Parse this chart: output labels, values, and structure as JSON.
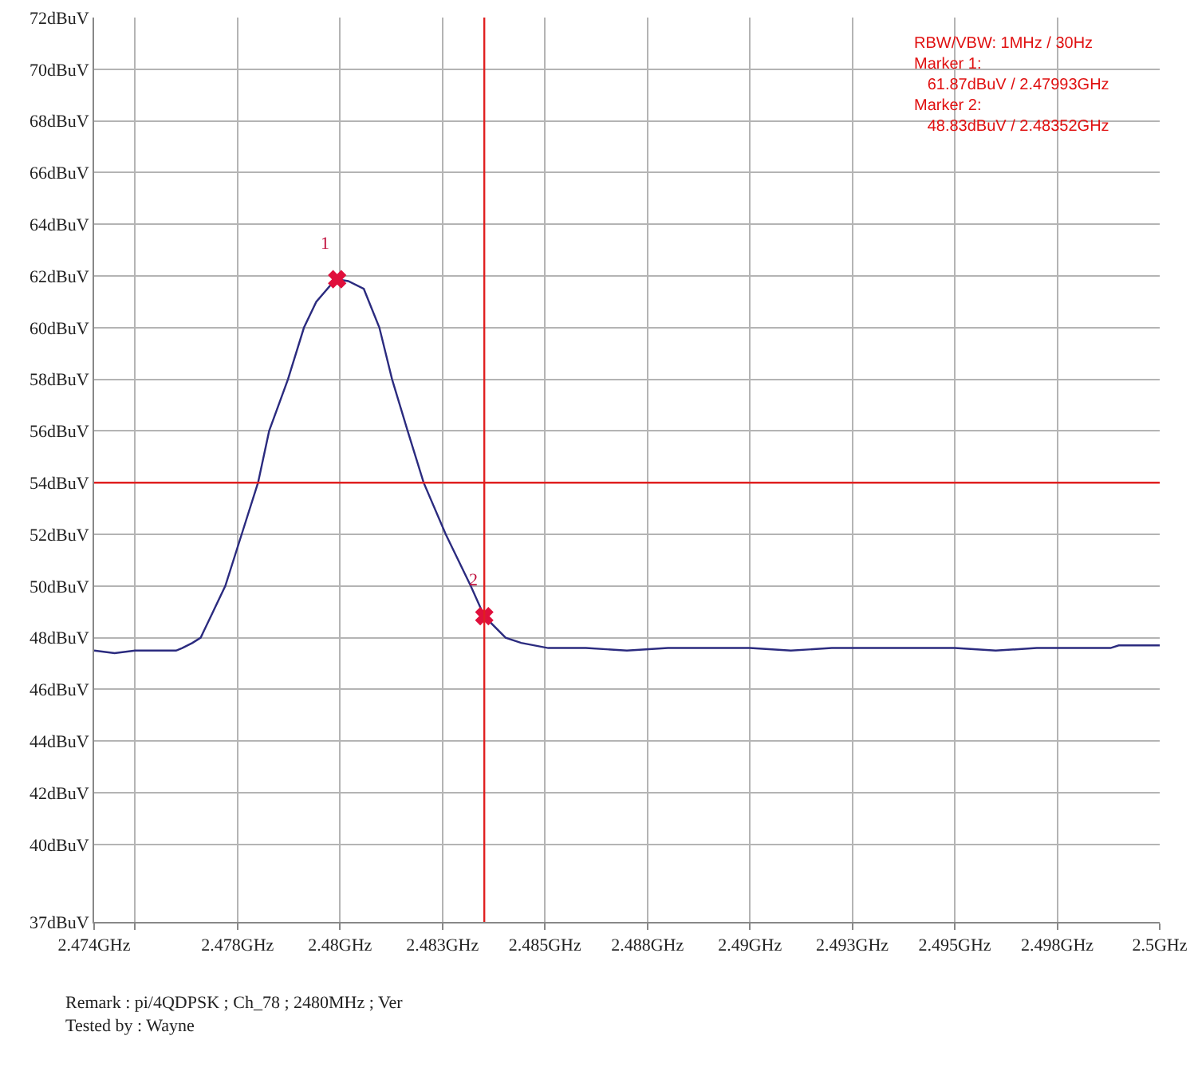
{
  "chart_data": {
    "type": "line",
    "xlim": [
      2.474,
      2.5
    ],
    "xticks": [
      {
        "value": 2.474,
        "label": "2.474GHz"
      },
      {
        "value": 2.475,
        "label": null
      },
      {
        "value": 2.4775,
        "label": "2.478GHz"
      },
      {
        "value": 2.48,
        "label": "2.48GHz"
      },
      {
        "value": 2.4825,
        "label": "2.483GHz"
      },
      {
        "value": 2.485,
        "label": "2.485GHz"
      },
      {
        "value": 2.4875,
        "label": "2.488GHz"
      },
      {
        "value": 2.49,
        "label": "2.49GHz"
      },
      {
        "value": 2.4925,
        "label": "2.493GHz"
      },
      {
        "value": 2.495,
        "label": "2.495GHz"
      },
      {
        "value": 2.4975,
        "label": "2.498GHz"
      },
      {
        "value": 2.5,
        "label": "2.5GHz"
      }
    ],
    "ylim": [
      37,
      72
    ],
    "yticks": [
      {
        "value": 37,
        "label": "37dBuV"
      },
      {
        "value": 40,
        "label": "40dBuV"
      },
      {
        "value": 42,
        "label": "42dBuV"
      },
      {
        "value": 44,
        "label": "44dBuV"
      },
      {
        "value": 46,
        "label": "46dBuV"
      },
      {
        "value": 48,
        "label": "48dBuV"
      },
      {
        "value": 50,
        "label": "50dBuV"
      },
      {
        "value": 52,
        "label": "52dBuV"
      },
      {
        "value": 54,
        "label": "54dBuV"
      },
      {
        "value": 56,
        "label": "56dBuV"
      },
      {
        "value": 58,
        "label": "58dBuV"
      },
      {
        "value": 60,
        "label": "60dBuV"
      },
      {
        "value": 62,
        "label": "62dBuV"
      },
      {
        "value": 64,
        "label": "64dBuV"
      },
      {
        "value": 66,
        "label": "66dBuV"
      },
      {
        "value": 68,
        "label": "68dBuV"
      },
      {
        "value": 70,
        "label": "70dBuV"
      },
      {
        "value": 72,
        "label": "72dBuV"
      }
    ],
    "grid": true,
    "series": [
      {
        "type": "line",
        "color": "#2b2b7f",
        "x": [
          2.474,
          2.4745,
          2.475,
          2.4755,
          2.476,
          2.47615,
          2.4764,
          2.4766,
          2.4769,
          2.4772,
          2.4776,
          2.478,
          2.47827,
          2.47873,
          2.47912,
          2.47942,
          2.4798,
          2.47993,
          2.4802,
          2.48058,
          2.48096,
          2.48127,
          2.48165,
          2.48204,
          2.48258,
          2.48319,
          2.48352,
          2.48404,
          2.48442,
          2.48508,
          2.486,
          2.487,
          2.488,
          2.489,
          2.49,
          2.491,
          2.492,
          2.493,
          2.494,
          2.495,
          2.496,
          2.497,
          2.498,
          2.4988,
          2.499,
          2.5
        ],
        "values": [
          47.5,
          47.4,
          47.5,
          47.5,
          47.5,
          47.6,
          47.8,
          48,
          49,
          50,
          52,
          54,
          56,
          58,
          60,
          61,
          61.7,
          61.87,
          61.8,
          61.5,
          60,
          58,
          56,
          54,
          52,
          50,
          48.83,
          48,
          47.8,
          47.6,
          47.6,
          47.5,
          47.6,
          47.6,
          47.6,
          47.5,
          47.6,
          47.6,
          47.6,
          47.6,
          47.5,
          47.6,
          47.6,
          47.6,
          47.7,
          47.7
        ]
      },
      {
        "type": "scatter",
        "color": "#e0103c",
        "marker": "cross",
        "x": [
          2.47993,
          2.48352
        ],
        "values": [
          61.87,
          48.83
        ]
      }
    ],
    "ref_lines": [
      {
        "axis": "y",
        "value": 54,
        "color": "#e02020"
      },
      {
        "axis": "x",
        "value": 2.48352,
        "color": "#e02020"
      }
    ],
    "annotations": [
      {
        "text": "1",
        "x": 2.47993,
        "y": 61.87
      },
      {
        "text": "2",
        "x": 2.48352,
        "y": 48.83
      },
      "RBW/VBW: 1MHz / 30Hz\nMarker 1:\n   61.87dBuV / 2.47993GHz\nMarker 2:\n   48.83dBuV / 2.48352GHz",
      "Remark : pi/4QDPSK ; Ch_78 ; 2480MHz ; Ver\nTested by : Wayne"
    ]
  }
}
